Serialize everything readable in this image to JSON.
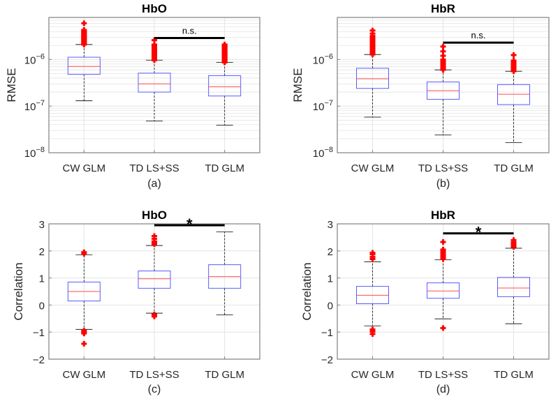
{
  "chart_data": [
    {
      "id": "a",
      "type": "box",
      "title": "HbO",
      "caption": "(a)",
      "ylabel": "RMSE",
      "yscale": "log",
      "ylim": [
        1e-08,
        8e-06
      ],
      "yticks": [
        1e-08,
        1e-07,
        1e-06
      ],
      "ytick_exponents": [
        "−8",
        "−7",
        "−6"
      ],
      "ytick_base": "10",
      "categories": [
        "CW GLM",
        "TD LS+SS",
        "TD GLM"
      ],
      "boxes": [
        {
          "whisker_low": 1.3e-07,
          "q1": 4.8e-07,
          "median": 7.1e-07,
          "q3": 1.12e-06,
          "whisker_high": 2.1e-06,
          "outlier_range": [
            2.1e-06,
            4.3e-06
          ],
          "outliers": [
            6e-06
          ]
        },
        {
          "whisker_low": 4.8e-08,
          "q1": 2e-07,
          "median": 3e-07,
          "q3": 5.1e-07,
          "whisker_high": 9.7e-07,
          "outlier_range": [
            9.7e-07,
            2.1e-06
          ],
          "outliers": [
            2.6e-06
          ]
        },
        {
          "whisker_low": 3.9e-08,
          "q1": 1.65e-07,
          "median": 2.6e-07,
          "q3": 4.5e-07,
          "whisker_high": 8.7e-07,
          "outlier_range": [
            8.7e-07,
            2.1e-06
          ],
          "outliers": []
        }
      ],
      "significance": {
        "from": "TD LS+SS",
        "to": "TD GLM",
        "y": 2.9e-06,
        "label": "n.s."
      }
    },
    {
      "id": "b",
      "type": "box",
      "title": "HbR",
      "caption": "(b)",
      "ylabel": "RMSE",
      "yscale": "log",
      "ylim": [
        1e-08,
        8e-06
      ],
      "yticks": [
        1e-08,
        1e-07,
        1e-06
      ],
      "ytick_exponents": [
        "−8",
        "−7",
        "−6"
      ],
      "ytick_base": "10",
      "categories": [
        "CW GLM",
        "TD LS+SS",
        "TD GLM"
      ],
      "boxes": [
        {
          "whisker_low": 5.8e-08,
          "q1": 2.4e-07,
          "median": 3.85e-07,
          "q3": 6.5e-07,
          "whisker_high": 1.28e-06,
          "outlier_range": [
            1.28e-06,
            3.2e-06
          ],
          "outliers": [
            3.6e-06,
            4.2e-06
          ]
        },
        {
          "whisker_low": 2.4e-08,
          "q1": 1.4e-07,
          "median": 2.15e-07,
          "q3": 3.3e-07,
          "whisker_high": 6e-07,
          "outlier_range": [
            6e-07,
            1e-06
          ],
          "outliers": [
            1.2e-06,
            1.5e-06,
            1.9e-06
          ]
        },
        {
          "whisker_low": 1.65e-08,
          "q1": 1.08e-07,
          "median": 1.8e-07,
          "q3": 2.9e-07,
          "whisker_high": 5.6e-07,
          "outlier_range": [
            5.6e-07,
            9.5e-07
          ],
          "outliers": [
            1.25e-06
          ]
        }
      ],
      "significance": {
        "from": "TD LS+SS",
        "to": "TD GLM",
        "y": 2.3e-06,
        "label": "n.s."
      }
    },
    {
      "id": "c",
      "type": "box",
      "title": "HbO",
      "caption": "(c)",
      "ylabel": "Correlation",
      "yscale": "linear",
      "ylim": [
        -2,
        3
      ],
      "yticks": [
        -2,
        -1,
        0,
        1,
        2,
        3
      ],
      "ytick_labels": [
        "−2",
        "−1",
        "0",
        "1",
        "2",
        "3"
      ],
      "categories": [
        "CW GLM",
        "TD LS+SS",
        "TD GLM"
      ],
      "boxes": [
        {
          "whisker_low": -0.9,
          "q1": 0.15,
          "median": 0.5,
          "q3": 0.85,
          "whisker_high": 1.86,
          "outliers": [
            1.9,
            1.95,
            -0.95,
            -1.0,
            -1.05,
            -1.43
          ]
        },
        {
          "whisker_low": -0.3,
          "q1": 0.62,
          "median": 0.97,
          "q3": 1.26,
          "whisker_high": 2.2,
          "outliers": [
            2.25,
            2.3,
            2.35,
            2.45,
            2.55,
            -0.35,
            -0.42
          ]
        },
        {
          "whisker_low": -0.36,
          "q1": 0.62,
          "median": 1.05,
          "q3": 1.49,
          "whisker_high": 2.7,
          "outliers": []
        }
      ],
      "significance": {
        "from": "TD LS+SS",
        "to": "TD GLM",
        "y": 2.95,
        "label": "*"
      }
    },
    {
      "id": "d",
      "type": "box",
      "title": "HbR",
      "caption": "(d)",
      "ylabel": "Correlation",
      "yscale": "linear",
      "ylim": [
        -2,
        3
      ],
      "yticks": [
        -2,
        -1,
        0,
        1,
        2,
        3
      ],
      "ytick_labels": [
        "−2",
        "−1",
        "0",
        "1",
        "2",
        "3"
      ],
      "categories": [
        "CW GLM",
        "TD LS+SS",
        "TD GLM"
      ],
      "boxes": [
        {
          "whisker_low": -0.77,
          "q1": 0.05,
          "median": 0.36,
          "q3": 0.69,
          "whisker_high": 1.6,
          "outliers": [
            1.7,
            1.78,
            1.88,
            1.93,
            -0.9,
            -0.98,
            -1.07
          ]
        },
        {
          "whisker_low": -0.51,
          "q1": 0.25,
          "median": 0.52,
          "q3": 0.82,
          "whisker_high": 1.67,
          "outliers": [
            1.7,
            1.75,
            1.8,
            1.85,
            1.9,
            1.95,
            2.0,
            2.05,
            2.33,
            -0.85
          ]
        },
        {
          "whisker_low": -0.69,
          "q1": 0.31,
          "median": 0.63,
          "q3": 1.02,
          "whisker_high": 2.1,
          "outliers": [
            2.15,
            2.2,
            2.25,
            2.32,
            2.4
          ]
        }
      ],
      "significance": {
        "from": "TD LS+SS",
        "to": "TD GLM",
        "y": 2.65,
        "label": "*"
      }
    }
  ],
  "colors": {
    "box": "#5b5bff",
    "median": "#ff4d4d",
    "outlier": "#ff0000",
    "whisker": "#000000",
    "grid": "#e3e3e3",
    "axis": "#808080"
  }
}
